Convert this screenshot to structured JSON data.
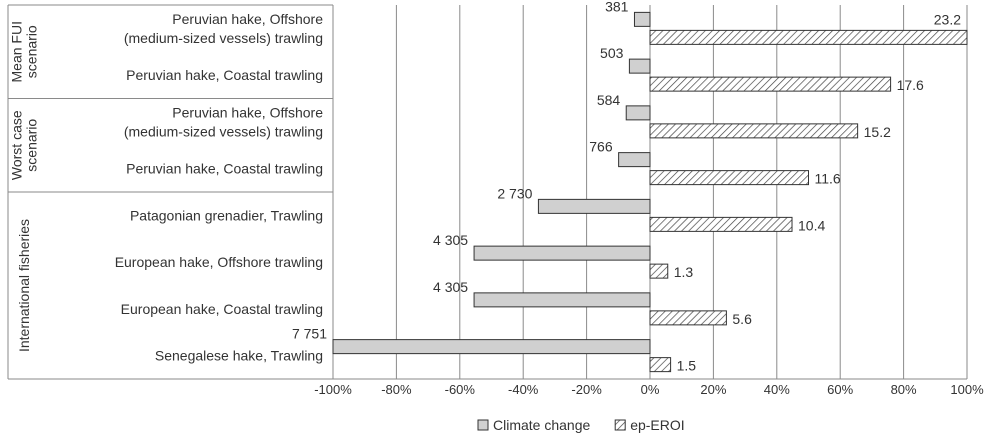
{
  "chart_data": {
    "type": "bar",
    "orientation": "horizontal",
    "xlim": [
      -100,
      100
    ],
    "x_ticks": [
      -100,
      -80,
      -60,
      -40,
      -20,
      0,
      20,
      40,
      60,
      80,
      100
    ],
    "x_tick_labels": [
      "-100%",
      "-80%",
      "-60%",
      "-40%",
      "-20%",
      "0%",
      "20%",
      "40%",
      "60%",
      "80%",
      "100%"
    ],
    "grid": "vertical",
    "legend_position": "bottom",
    "groups": [
      {
        "label": "Mean FUI scenario",
        "categories": [
          0,
          1
        ]
      },
      {
        "label": "Worst case scenario",
        "categories": [
          2,
          3
        ]
      },
      {
        "label": "International fisheries",
        "categories": [
          4,
          5,
          6,
          7
        ]
      }
    ],
    "categories": [
      [
        "Peruvian hake, Offshore",
        "(medium-sized vessels) trawling"
      ],
      [
        "Peruvian hake, Coastal trawling"
      ],
      [
        "Peruvian hake, Offshore",
        "(medium-sized vessels) trawling"
      ],
      [
        "Peruvian hake, Coastal trawling"
      ],
      [
        "Patagonian grenadier, Trawling"
      ],
      [
        "European hake, Offshore trawling"
      ],
      [
        "European hake, Coastal trawling"
      ],
      [
        "Senegalese hake, Trawling"
      ]
    ],
    "series": [
      {
        "name": "Climate change",
        "color": "#d0d0d0",
        "values": [
          -4.9,
          -6.5,
          -7.5,
          -9.9,
          -35.2,
          -55.5,
          -55.5,
          -100
        ],
        "labels": [
          "381",
          "503",
          "584",
          "766",
          "2 730",
          "4 305",
          "4 305",
          "7 751"
        ]
      },
      {
        "name": "ep-EROI",
        "color": "#ffffff",
        "pattern": "diagonal-hatch",
        "values": [
          100,
          75.9,
          65.5,
          50.0,
          44.8,
          5.6,
          24.1,
          6.5
        ],
        "labels": [
          "23.2",
          "17.6",
          "15.2",
          "11.6",
          "10.4",
          "1.3",
          "5.6",
          "1.5"
        ]
      }
    ]
  }
}
